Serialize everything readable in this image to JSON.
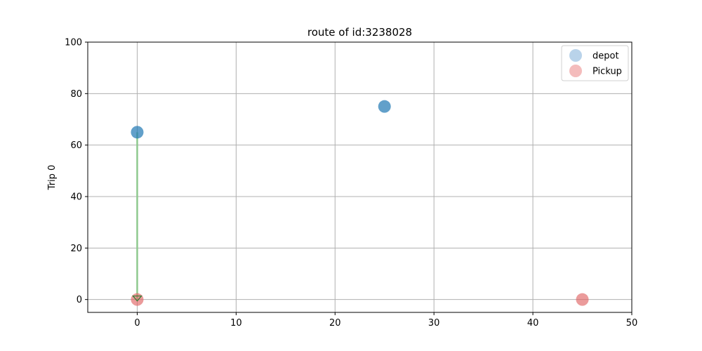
{
  "chart_data": {
    "type": "scatter",
    "title": "route of id:3238028",
    "xlabel": "",
    "ylabel": "Trip 0",
    "xlim": [
      -5,
      50
    ],
    "ylim": [
      -5,
      100
    ],
    "xticks": [
      0,
      10,
      20,
      30,
      40,
      50
    ],
    "yticks": [
      0,
      20,
      40,
      60,
      80,
      100
    ],
    "xtick_labels": [
      "0",
      "10",
      "20",
      "30",
      "40",
      "50"
    ],
    "ytick_labels": [
      "0",
      "20",
      "40",
      "60",
      "80",
      "100"
    ],
    "grid": true,
    "legend_position": "top-right",
    "series": [
      {
        "name": "depot",
        "color": "#1f77b4",
        "legend_color": "#b9d3ea",
        "points": [
          {
            "x": 0,
            "y": 65
          },
          {
            "x": 25,
            "y": 75
          }
        ]
      },
      {
        "name": "Pickup",
        "color": "#e06666",
        "legend_color": "#f4bcbc",
        "points": [
          {
            "x": 0,
            "y": 0
          },
          {
            "x": 45,
            "y": 0
          }
        ]
      }
    ],
    "routes": [
      {
        "from": {
          "x": 0,
          "y": 65
        },
        "to": {
          "x": 0,
          "y": 0
        },
        "color": "#8fc98f",
        "arrow_color": "#2e7d32"
      }
    ]
  }
}
